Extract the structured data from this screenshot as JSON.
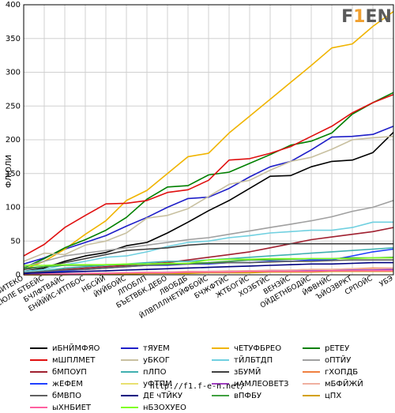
{
  "logo": {
    "text_a": "F",
    "text_b": "1",
    "text_c": "EN"
  },
  "footer": {
    "url": "http://f1.f-e-n.net/"
  },
  "chart_data": {
    "type": "line",
    "ylabel": "ФЛЮЛИ",
    "xlabel": "",
    "title": "",
    "ylim": [
      0,
      400
    ],
    "yticks": [
      0,
      50,
      100,
      150,
      200,
      250,
      300,
      350,
      400
    ],
    "categories": [
      "ВВИТЕКО",
      "ЕЙСЮЛЕ БТБЕЙС",
      "БЧЛФТВАЙС",
      "ЕНЙЙЙС-ИТПБОС",
      "НБСЙЙ",
      "ЙУЙБОЙС",
      "ЛПОБЛП",
      "БЪЕТВБК.ДЕБО",
      "ЛВОБДБ",
      "ЙЛВПЛЛНЕТЙФБОЙС",
      "БЧЖФТЙС",
      "ЖТБОГЙС",
      "ХОЗБТЙС",
      "ВЕНЗЙС",
      "ОЙДЕТНБОДЙС",
      "ЙФВНЙС",
      "ЪЙОЗВРКТ",
      "СРПОЙС",
      "УБЭ"
    ],
    "series": [
      {
        "name": "иБНЙМФЯО",
        "color": "#000000",
        "values": [
          5,
          10,
          20,
          28,
          33,
          43,
          48,
          62,
          78,
          95,
          110,
          128,
          146,
          147,
          160,
          168,
          170,
          181,
          211
        ]
      },
      {
        "name": "тЯУЕМ",
        "color": "#1e1ec8",
        "values": [
          16,
          25,
          38,
          48,
          58,
          72,
          85,
          100,
          113,
          115,
          128,
          145,
          160,
          168,
          185,
          204,
          205,
          208,
          220
        ]
      },
      {
        "name": "чЕТУФБРЕО",
        "color": "#f0b400",
        "values": [
          8,
          20,
          38,
          60,
          80,
          110,
          125,
          150,
          175,
          180,
          210,
          235,
          260,
          285,
          310,
          336,
          342,
          368,
          390
        ]
      },
      {
        "name": "рЕТЕУ",
        "color": "#008000",
        "values": [
          10,
          24,
          40,
          52,
          66,
          85,
          112,
          130,
          132,
          148,
          152,
          165,
          178,
          192,
          198,
          210,
          238,
          255,
          270
        ]
      },
      {
        "name": "мШПЛМЕТ",
        "color": "#e01010",
        "values": [
          28,
          45,
          70,
          88,
          105,
          106,
          110,
          122,
          126,
          140,
          170,
          172,
          180,
          190,
          205,
          220,
          240,
          255,
          267
        ]
      },
      {
        "name": "уБКОГ",
        "color": "#c8c0a0",
        "values": [
          20,
          32,
          30,
          44,
          50,
          62,
          84,
          88,
          98,
          116,
          134,
          140,
          155,
          168,
          174,
          186,
          200,
          203,
          205
        ]
      },
      {
        "name": "тЙЛБТДП",
        "color": "#70d0e0",
        "values": [
          5,
          8,
          15,
          20,
          26,
          28,
          34,
          42,
          48,
          50,
          55,
          58,
          62,
          64,
          66,
          66,
          70,
          78,
          78
        ]
      },
      {
        "name": "оПТЙУ",
        "color": "#a0a0a0",
        "values": [
          12,
          20,
          28,
          32,
          36,
          40,
          44,
          48,
          52,
          55,
          60,
          65,
          70,
          75,
          80,
          86,
          94,
          100,
          110
        ]
      },
      {
        "name": "бМПОУП",
        "color": "#a02030",
        "values": [
          2,
          5,
          8,
          10,
          12,
          14,
          16,
          18,
          22,
          26,
          30,
          34,
          40,
          46,
          52,
          56,
          60,
          64,
          70
        ]
      },
      {
        "name": "пЛПО",
        "color": "#40b0b0",
        "values": [
          3,
          6,
          10,
          12,
          14,
          16,
          18,
          20,
          20,
          22,
          24,
          26,
          28,
          30,
          32,
          34,
          36,
          38,
          40
        ]
      },
      {
        "name": "зБУМЙ",
        "color": "#404040",
        "values": [
          8,
          12,
          18,
          24,
          30,
          36,
          38,
          40,
          44,
          46,
          46,
          46,
          46,
          46,
          46,
          46,
          46,
          46,
          46
        ]
      },
      {
        "name": "гХОПДБ",
        "color": "#f08040",
        "values": [
          0,
          0,
          1,
          1,
          2,
          2,
          3,
          3,
          4,
          4,
          5,
          6,
          6,
          7,
          8,
          8,
          9,
          10,
          10
        ]
      },
      {
        "name": "жЕФЕМ",
        "color": "#2040ff",
        "values": [
          2,
          4,
          6,
          8,
          10,
          12,
          14,
          14,
          16,
          16,
          18,
          18,
          20,
          20,
          22,
          22,
          28,
          34,
          38
        ]
      },
      {
        "name": "уФТПМ",
        "color": "#e8e070",
        "values": [
          0,
          0,
          1,
          1,
          1,
          2,
          2,
          3,
          3,
          4,
          4,
          5,
          5,
          6,
          6,
          7,
          7,
          8,
          8
        ]
      },
      {
        "name": "иАМЛЕОВЕТЗ",
        "color": "#a040c0",
        "values": [
          0,
          1,
          1,
          2,
          2,
          3,
          3,
          4,
          4,
          5,
          5,
          6,
          6,
          6,
          7,
          7,
          8,
          8,
          8
        ]
      },
      {
        "name": "мБФЙЖЙ",
        "color": "#f0b0a0",
        "values": [
          0,
          1,
          2,
          2,
          3,
          3,
          4,
          4,
          5,
          5,
          6,
          6,
          7,
          7,
          8,
          8,
          9,
          9,
          10
        ]
      },
      {
        "name": "бМВПО",
        "color": "#606060",
        "values": [
          3,
          5,
          7,
          8,
          10,
          12,
          14,
          15,
          16,
          17,
          18,
          18,
          19,
          20,
          20,
          21,
          22,
          22,
          22
        ]
      },
      {
        "name": "ДЕ чТЙКУ",
        "color": "#000080",
        "values": [
          2,
          3,
          4,
          5,
          6,
          7,
          8,
          9,
          10,
          11,
          12,
          13,
          14,
          15,
          16,
          16,
          17,
          18,
          18
        ]
      },
      {
        "name": "вПФБУ",
        "color": "#40a040",
        "values": [
          10,
          12,
          14,
          14,
          15,
          15,
          16,
          16,
          17,
          18,
          20,
          22,
          22,
          23,
          24,
          24,
          25,
          25,
          26
        ]
      },
      {
        "name": "цПХ",
        "color": "#d4a000",
        "values": [
          0,
          0,
          0,
          1,
          1,
          1,
          2,
          2,
          2,
          3,
          3,
          3,
          4,
          4,
          4,
          5,
          5,
          5,
          5
        ]
      },
      {
        "name": "ыХНБИЕТ",
        "color": "#ff60a0",
        "values": [
          0,
          1,
          1,
          2,
          2,
          3,
          3,
          3,
          4,
          4,
          4,
          5,
          5,
          5,
          5,
          6,
          6,
          6,
          6
        ]
      },
      {
        "name": "нБЗОХУЕО",
        "color": "#80ff20",
        "values": [
          14,
          14,
          15,
          15,
          15,
          16,
          16,
          17,
          17,
          22,
          23,
          23,
          24,
          24,
          24,
          24,
          24,
          25,
          25
        ]
      }
    ],
    "legend_position": "bottom",
    "grid": true
  }
}
